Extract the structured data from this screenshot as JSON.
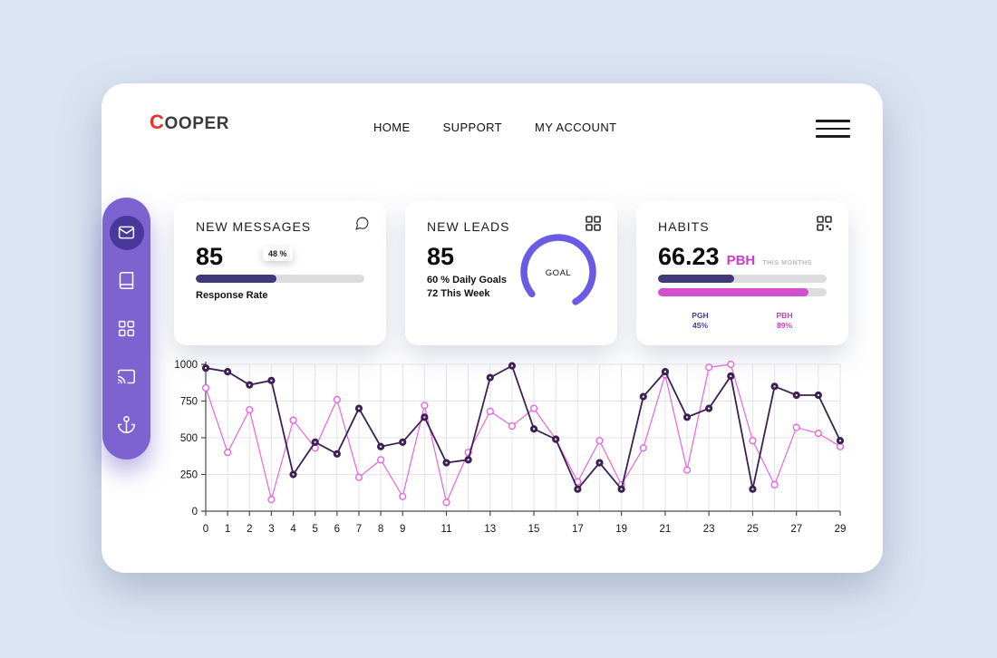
{
  "brand": {
    "logo_first": "C",
    "logo_rest": "OOPER"
  },
  "nav": {
    "items": [
      {
        "label": "HOME"
      },
      {
        "label": "SUPPORT"
      },
      {
        "label": "MY ACCOUNT"
      }
    ]
  },
  "sidebar": {
    "items": [
      {
        "icon": "mail-icon",
        "active": true
      },
      {
        "icon": "book-icon",
        "active": false
      },
      {
        "icon": "grid-icon",
        "active": false
      },
      {
        "icon": "cast-icon",
        "active": false
      },
      {
        "icon": "anchor-icon",
        "active": false
      }
    ]
  },
  "cards": {
    "messages": {
      "title": "NEW MESSAGES",
      "value": "85",
      "tooltip": "48 %",
      "progress_pct": 48,
      "label": "Response Rate",
      "icon": "chat-bubble-icon"
    },
    "leads": {
      "title": "NEW LEADS",
      "value": "85",
      "line1": "60 % Daily Goals",
      "line2": "72 This Week",
      "gauge_label": "GOAL",
      "icon": "grid-icon"
    },
    "habits": {
      "title": "HABITS",
      "value": "66.23",
      "unit": "PBH",
      "period": "THIS MONTHS",
      "icon": "qr-grid-icon",
      "bars": [
        {
          "label": "PGH",
          "pct_label": "45%",
          "pct": 45,
          "color": "#413a78"
        },
        {
          "label": "PBH",
          "pct_label": "89%",
          "pct": 89,
          "color": "#d24fd0"
        }
      ]
    }
  },
  "chart_data": {
    "type": "line",
    "x": [
      0,
      1,
      2,
      3,
      4,
      5,
      6,
      7,
      8,
      9,
      10,
      11,
      12,
      13,
      14,
      15,
      16,
      17,
      18,
      19,
      20,
      21,
      22,
      23,
      24,
      25,
      26,
      27,
      28,
      29
    ],
    "x_tick_labels": [
      "0",
      "1",
      "2",
      "3",
      "4",
      "5",
      "6",
      "7",
      "8",
      "9",
      "11",
      "13",
      "15",
      "17",
      "19",
      "21",
      "23",
      "25",
      "27",
      "29"
    ],
    "y_ticks": [
      0,
      250,
      500,
      750,
      1000
    ],
    "ylim": [
      0,
      1000
    ],
    "grid": true,
    "legend": "none",
    "series": [
      {
        "name": "magenta-series",
        "color": "#e964e0",
        "marker": "open",
        "values": [
          840,
          400,
          690,
          80,
          620,
          430,
          760,
          230,
          350,
          100,
          720,
          60,
          400,
          680,
          580,
          700,
          490,
          200,
          480,
          180,
          430,
          930,
          280,
          980,
          1000,
          480,
          180,
          570,
          530,
          440
        ]
      },
      {
        "name": "dark-series",
        "color": "#3c2054",
        "marker": "filled",
        "values": [
          975,
          950,
          860,
          890,
          250,
          470,
          390,
          700,
          440,
          470,
          640,
          330,
          350,
          910,
          990,
          560,
          490,
          150,
          330,
          150,
          780,
          950,
          640,
          700,
          920,
          150,
          850,
          790,
          790,
          480
        ]
      }
    ]
  },
  "colors": {
    "background": "#dbe4f2",
    "sidebar": "#7c63cf",
    "sidebar_active": "#48389b",
    "accent_dark": "#413a78",
    "accent_magenta": "#d24fd0",
    "gauge": "#6a5be2",
    "logo_red": "#e8322e"
  }
}
